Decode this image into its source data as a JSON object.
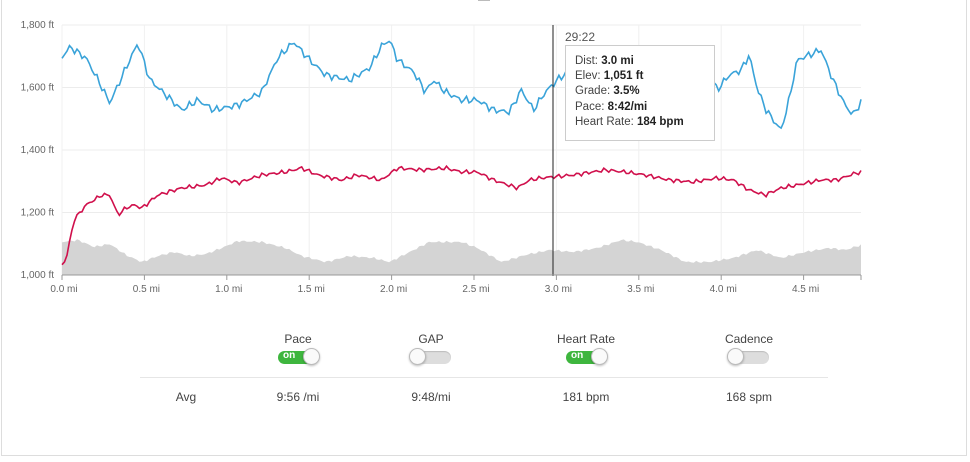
{
  "chart": {
    "y_ticks": [
      "1,800 ft",
      "1,600 ft",
      "1,400 ft",
      "1,200 ft",
      "1,000 ft"
    ],
    "x_ticks": [
      "0.0 mi",
      "0.5 mi",
      "1.0 mi",
      "1.5 mi",
      "2.0 mi",
      "2.5 mi",
      "3.0 mi",
      "3.5 mi",
      "4.0 mi",
      "4.5 mi"
    ],
    "cursor_time": "29:22",
    "colors": {
      "pace": "#3aa3d9",
      "heart_rate": "#d0104c",
      "elevation": "#d4d4d4",
      "cursor": "#222222"
    }
  },
  "tooltip": {
    "dist_label": "Dist:",
    "dist_value": "3.0 mi",
    "elev_label": "Elev:",
    "elev_value": "1,051 ft",
    "grade_label": "Grade:",
    "grade_value": "3.5%",
    "pace_label": "Pace:",
    "pace_value": "8:42/mi",
    "hr_label": "Heart Rate:",
    "hr_value": "184 bpm"
  },
  "toggles": {
    "on_text": "on",
    "pace": {
      "label": "Pace",
      "state": "on"
    },
    "gap": {
      "label": "GAP",
      "state": "off"
    },
    "heart_rate": {
      "label": "Heart Rate",
      "state": "on"
    },
    "cadence": {
      "label": "Cadence",
      "state": "off"
    }
  },
  "averages": {
    "label": "Avg",
    "pace": "9:56 /mi",
    "gap": "9:48/mi",
    "heart_rate": "181 bpm",
    "cadence": "168 spm"
  }
}
